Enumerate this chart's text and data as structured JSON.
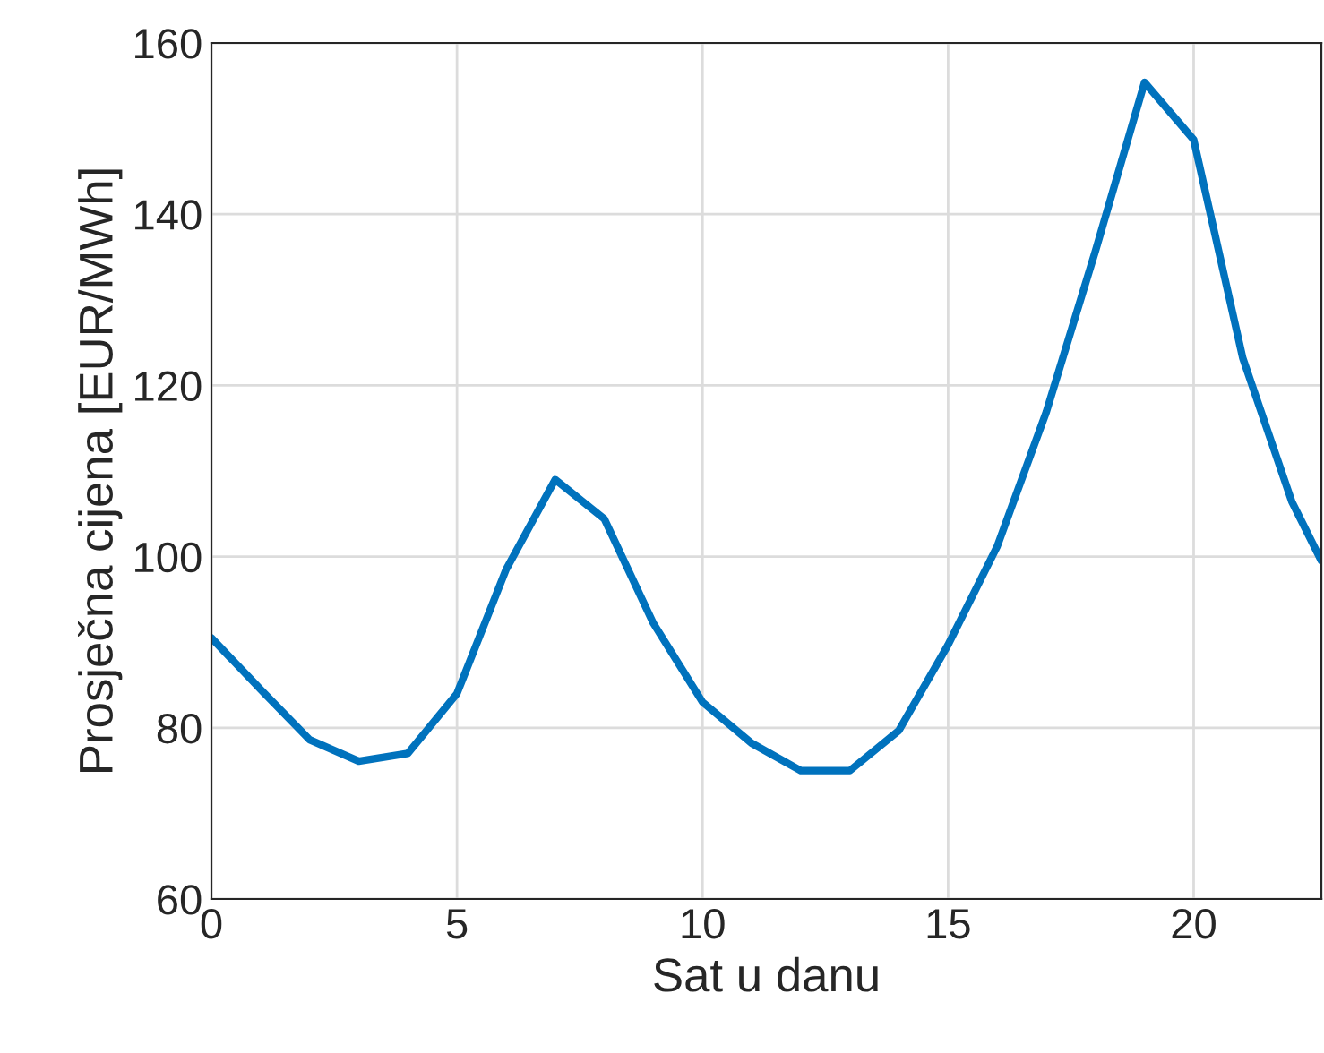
{
  "chart_data": {
    "type": "line",
    "xlabel": "Sat u danu",
    "ylabel": "Prosječna cijena [EUR/MWh]",
    "x": [
      0,
      1,
      2,
      3,
      4,
      5,
      6,
      7,
      8,
      9,
      10,
      11,
      12,
      13,
      14,
      15,
      16,
      17,
      18,
      19,
      20,
      21,
      22,
      22.6
    ],
    "series": [
      {
        "color": "#0072bd",
        "values": [
          90.5,
          84.5,
          78.6,
          76.1,
          77,
          84,
          98.5,
          109,
          104.4,
          92.2,
          83,
          78.2,
          75,
          75,
          79.7,
          89.7,
          101.2,
          116.9,
          135.7,
          155.4,
          148.7,
          123.2,
          106.4,
          99.5
        ]
      }
    ],
    "xlim": [
      0,
      22.6
    ],
    "ylim": [
      60,
      160
    ],
    "xticks": [
      0,
      5,
      10,
      15,
      20
    ],
    "yticks": [
      60,
      80,
      100,
      120,
      140,
      160
    ],
    "grid": true,
    "marker": "none",
    "line_style": "solid"
  }
}
